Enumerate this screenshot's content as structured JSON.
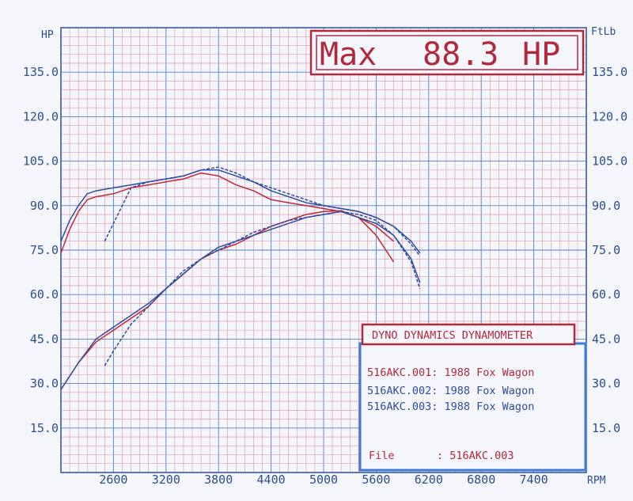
{
  "chart_data": {
    "type": "line",
    "xlabel": "RPM",
    "ylabel_left": "HP",
    "ylabel_right": "FtLb",
    "xlim": [
      2000,
      8000
    ],
    "ylim": [
      0,
      150
    ],
    "x_ticks": [
      "2600",
      "3200",
      "3800",
      "4400",
      "5000",
      "5600",
      "6200",
      "6800",
      "7400"
    ],
    "y_ticks": [
      "15.0",
      "30.0",
      "45.0",
      "60.0",
      "75.0",
      "90.0",
      "105.0",
      "120.0",
      "135.0"
    ],
    "max_label": "Max",
    "max_value": "88.3",
    "max_unit": "HP",
    "legend_title": "DYNO DYNAMICS DYNAMOMETER",
    "file_label": "File",
    "file_value": ": 516AKC.003",
    "series": [
      {
        "name": "516AKC.001: 1988 Fox Wagon",
        "color": "#c0283a",
        "hp": {
          "x": [
            2000,
            2200,
            2400,
            2600,
            2800,
            3000,
            3200,
            3400,
            3600,
            3800,
            4000,
            4200,
            4400,
            4600,
            4800,
            5000,
            5200,
            5400,
            5600,
            5800
          ],
          "y": [
            28,
            37,
            44,
            48,
            52,
            56,
            62,
            67,
            72,
            75,
            77,
            80,
            83,
            85,
            87,
            88,
            88.3,
            86,
            80,
            71
          ]
        },
        "torque": {
          "x": [
            2000,
            2100,
            2200,
            2300,
            2400,
            2600,
            2800,
            3000,
            3200,
            3400,
            3600,
            3800,
            4000,
            4200,
            4400,
            4600,
            4800,
            5000,
            5200,
            5400,
            5600,
            5800
          ],
          "y": [
            74,
            82,
            88,
            92,
            93,
            94,
            96,
            97,
            98,
            99,
            101,
            100,
            97,
            95,
            92,
            91,
            90,
            89,
            88,
            86,
            83,
            78
          ]
        }
      },
      {
        "name": "516AKC.002: 1988 Fox Wagon",
        "color": "#2e4da0",
        "hp": {
          "x": [
            2000,
            2200,
            2400,
            2600,
            2800,
            3000,
            3200,
            3400,
            3600,
            3800,
            4000,
            4200,
            4400,
            4600,
            4800,
            5000,
            5200,
            5400,
            5600,
            5800,
            6000,
            6100
          ],
          "y": [
            28,
            37,
            45,
            49,
            53,
            57,
            62,
            67,
            72,
            76,
            78,
            80,
            82,
            84,
            86,
            87,
            88,
            86,
            84,
            80,
            72,
            64
          ]
        },
        "torque": {
          "x": [
            2000,
            2100,
            2200,
            2300,
            2400,
            2600,
            2800,
            3000,
            3200,
            3400,
            3600,
            3800,
            4000,
            4200,
            4400,
            4600,
            4800,
            5000,
            5200,
            5400,
            5600,
            5800,
            6000,
            6100
          ],
          "y": [
            78,
            85,
            90,
            94,
            95,
            96,
            97,
            98,
            99,
            100,
            102,
            102,
            100,
            98,
            95,
            93,
            91,
            90,
            89,
            88,
            86,
            83,
            78,
            74
          ]
        }
      },
      {
        "name": "516AKC.003: 1988 Fox Wagon",
        "color": "#2e4da0",
        "hp": {
          "x": [
            2500,
            2600,
            2800,
            3000,
            3200,
            3400,
            3600,
            3800,
            4000,
            4200,
            4400,
            4600,
            4800,
            5000,
            5200,
            5400,
            5600,
            5800,
            6000,
            6100
          ],
          "y": [
            36,
            41,
            50,
            56,
            62,
            68,
            72,
            75,
            78,
            81,
            83,
            85,
            86,
            87,
            88,
            87,
            85,
            80,
            71,
            62
          ]
        },
        "torque": {
          "x": [
            2500,
            2600,
            2700,
            2800,
            3000,
            3200,
            3400,
            3600,
            3800,
            4000,
            4200,
            4400,
            4600,
            4800,
            5000,
            5200,
            5400,
            5600,
            5800,
            6000,
            6100
          ],
          "y": [
            78,
            84,
            90,
            96,
            98,
            99,
            100,
            102,
            103,
            101,
            98,
            96,
            94,
            92,
            90,
            89,
            88,
            86,
            83,
            77,
            73
          ]
        }
      }
    ]
  }
}
